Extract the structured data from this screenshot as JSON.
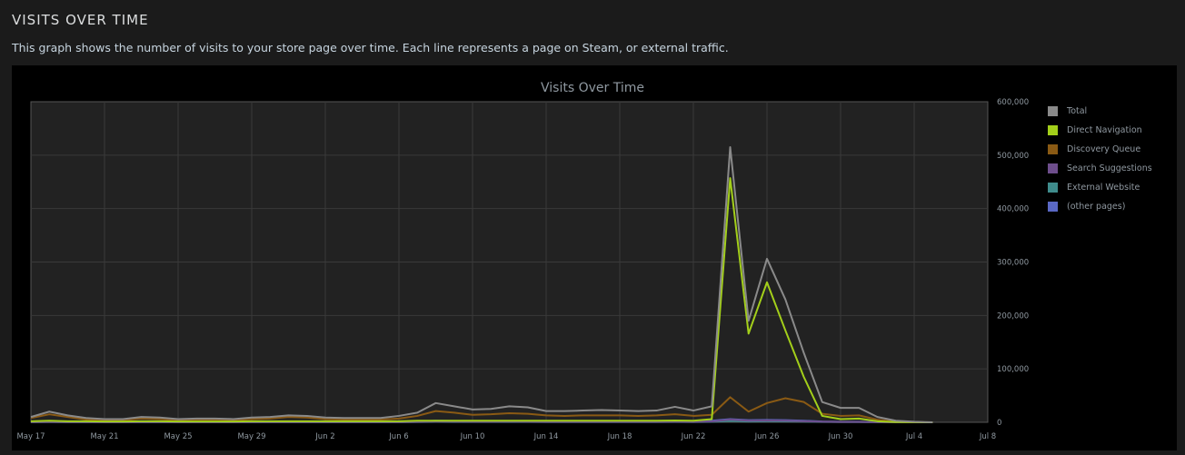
{
  "header": {
    "title": "VISITS OVER TIME",
    "description": "This graph shows the number of visits to your store page over time. Each line represents a page on Steam, or external traffic."
  },
  "chart_data": {
    "type": "line",
    "title": "Visits Over Time",
    "xlabel": "",
    "ylabel": "",
    "x_ticks": [
      "May 17",
      "May 21",
      "May 25",
      "May 29",
      "Jun 2",
      "Jun 6",
      "Jun 10",
      "Jun 14",
      "Jun 18",
      "Jun 22",
      "Jun 26",
      "Jun 30",
      "Jul 4",
      "Jul 8"
    ],
    "y_ticks": [
      "0",
      "100,000",
      "200,000",
      "300,000",
      "400,000",
      "500,000",
      "600,000"
    ],
    "xlim": [
      "2017-05-17",
      "2017-07-08"
    ],
    "ylim": [
      0,
      600000
    ],
    "x": [
      "May 17",
      "May 18",
      "May 19",
      "May 20",
      "May 21",
      "May 22",
      "May 23",
      "May 24",
      "May 25",
      "May 26",
      "May 27",
      "May 28",
      "May 29",
      "May 30",
      "May 31",
      "Jun 1",
      "Jun 2",
      "Jun 3",
      "Jun 4",
      "Jun 5",
      "Jun 6",
      "Jun 7",
      "Jun 8",
      "Jun 9",
      "Jun 10",
      "Jun 11",
      "Jun 12",
      "Jun 13",
      "Jun 14",
      "Jun 15",
      "Jun 16",
      "Jun 17",
      "Jun 18",
      "Jun 19",
      "Jun 20",
      "Jun 21",
      "Jun 22",
      "Jun 23",
      "Jun 24",
      "Jun 25",
      "Jun 26",
      "Jun 27",
      "Jun 28",
      "Jun 29",
      "Jun 30",
      "Jul 1",
      "Jul 2",
      "Jul 3",
      "Jul 4",
      "Jul 5"
    ],
    "grid": true,
    "legend_position": "right",
    "series": [
      {
        "name": "Total",
        "color": "#8a8a8a",
        "values": [
          10000,
          20000,
          13000,
          8000,
          6000,
          6000,
          10000,
          9000,
          6000,
          7000,
          7000,
          6000,
          9000,
          10000,
          13000,
          12000,
          9000,
          8000,
          8000,
          8000,
          12000,
          18000,
          36000,
          30000,
          24000,
          25000,
          30000,
          28000,
          21000,
          21000,
          22000,
          23000,
          22000,
          21000,
          22000,
          29000,
          22000,
          30000,
          515000,
          190000,
          306000,
          230000,
          130000,
          38000,
          27000,
          27000,
          10000,
          3000,
          1000,
          0
        ]
      },
      {
        "name": "Direct Navigation",
        "color": "#a3cf1a",
        "values": [
          2000,
          3000,
          2000,
          2000,
          1500,
          1500,
          2000,
          2000,
          1500,
          1500,
          1500,
          1500,
          2000,
          2000,
          2000,
          2000,
          2000,
          2000,
          2000,
          2000,
          2000,
          3000,
          3000,
          3000,
          3000,
          3000,
          3000,
          3000,
          3000,
          3000,
          3000,
          3000,
          3000,
          3000,
          3000,
          3500,
          3000,
          6000,
          457000,
          166000,
          262000,
          172000,
          85000,
          12000,
          6000,
          7000,
          2000,
          500,
          200,
          0
        ]
      },
      {
        "name": "Discovery Queue",
        "color": "#8a5a14",
        "values": [
          8000,
          15000,
          10000,
          5000,
          4000,
          4000,
          7000,
          6000,
          4000,
          5000,
          5000,
          4000,
          6000,
          7000,
          10000,
          9000,
          6000,
          5000,
          5000,
          5000,
          7000,
          12000,
          21000,
          18000,
          14000,
          15000,
          17000,
          16000,
          13000,
          12000,
          13000,
          13000,
          13000,
          12000,
          13000,
          15000,
          12000,
          14000,
          47000,
          20000,
          36000,
          45000,
          38000,
          16000,
          12000,
          13000,
          5000,
          1000,
          500,
          0
        ]
      },
      {
        "name": "Search Suggestions",
        "color": "#6e4e8c",
        "values": [
          500,
          600,
          500,
          400,
          300,
          300,
          400,
          400,
          300,
          300,
          300,
          300,
          400,
          400,
          500,
          500,
          400,
          400,
          400,
          400,
          500,
          800,
          1500,
          1300,
          1000,
          1000,
          1200,
          1100,
          900,
          900,
          900,
          900,
          900,
          900,
          900,
          1000,
          900,
          1500,
          5000,
          3000,
          3500,
          3000,
          2000,
          1000,
          700,
          700,
          300,
          100,
          50,
          0
        ]
      },
      {
        "name": "External Website",
        "color": "#3f8c8c",
        "values": [
          300,
          400,
          300,
          300,
          200,
          200,
          300,
          300,
          200,
          200,
          200,
          200,
          300,
          300,
          300,
          300,
          300,
          300,
          300,
          300,
          300,
          500,
          800,
          700,
          600,
          600,
          700,
          600,
          500,
          500,
          500,
          500,
          500,
          500,
          500,
          600,
          500,
          800,
          2500,
          1500,
          2000,
          1800,
          1200,
          600,
          400,
          400,
          200,
          100,
          50,
          0
        ]
      },
      {
        "name": "(other pages)",
        "color": "#5a68c4",
        "values": [
          800,
          1000,
          800,
          600,
          500,
          500,
          700,
          700,
          500,
          600,
          600,
          500,
          700,
          800,
          900,
          900,
          700,
          700,
          700,
          700,
          900,
          1500,
          3000,
          2600,
          2000,
          2100,
          2500,
          2400,
          2000,
          1900,
          2000,
          2000,
          2000,
          1900,
          2000,
          2300,
          2000,
          3000,
          6000,
          4000,
          4500,
          4000,
          3000,
          1500,
          1000,
          1000,
          500,
          200,
          100,
          0
        ]
      }
    ]
  }
}
